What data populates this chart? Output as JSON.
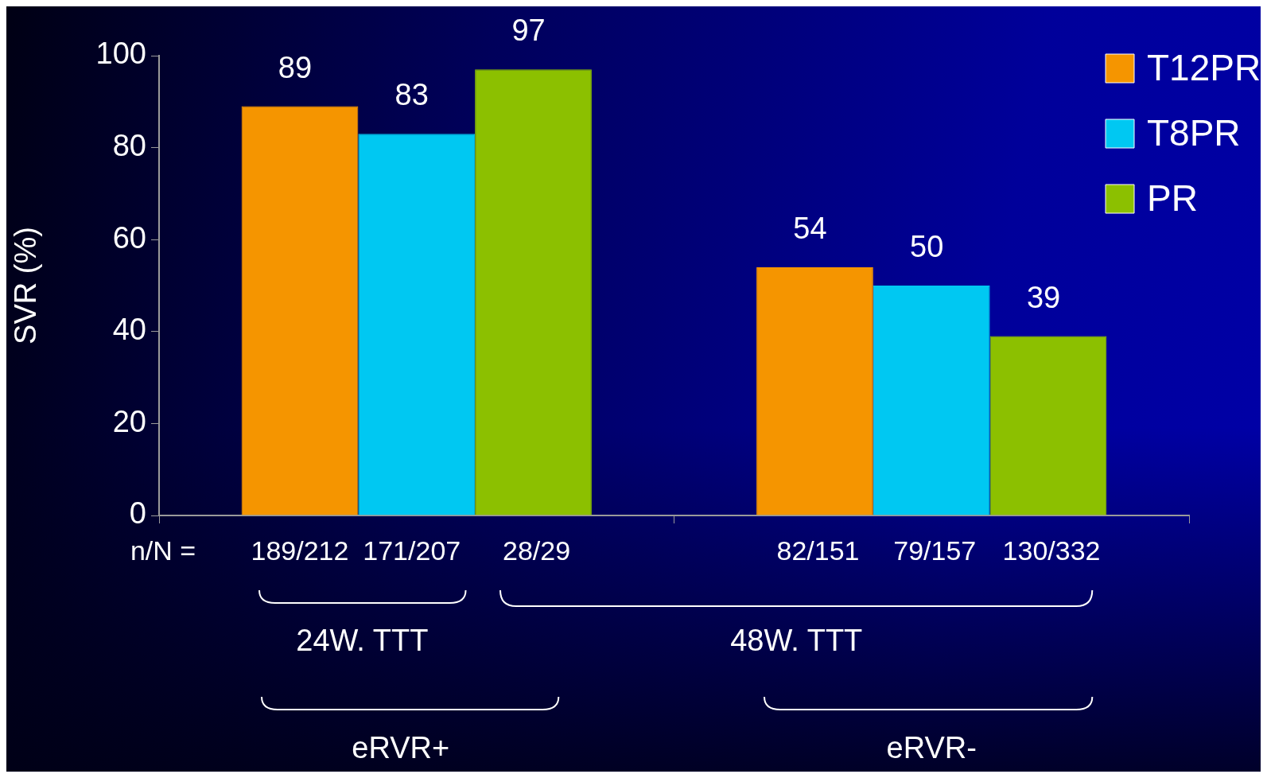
{
  "chart_data": {
    "type": "bar",
    "ylabel": "SVR (%)",
    "categories": [
      null,
      null
    ],
    "series": [
      {
        "name": "T12PR",
        "color": "#f59500",
        "values": [
          89,
          54
        ]
      },
      {
        "name": "T8PR",
        "color": "#00c8f2",
        "values": [
          83,
          50
        ]
      },
      {
        "name": "PR",
        "color": "#8cc000",
        "values": [
          97,
          39
        ]
      }
    ],
    "ylim": [
      0,
      100
    ],
    "yticks": [
      0,
      20,
      40,
      60,
      80,
      100
    ],
    "grid": false,
    "legend": "top right",
    "data_labels": true,
    "annotations": [
      "n/N =",
      "189/212",
      "171/207",
      "28/29",
      "82/151",
      "79/157",
      "130/332",
      "24W. TTT",
      "48W. TTT",
      "eRVR+",
      "eRVR-"
    ]
  }
}
